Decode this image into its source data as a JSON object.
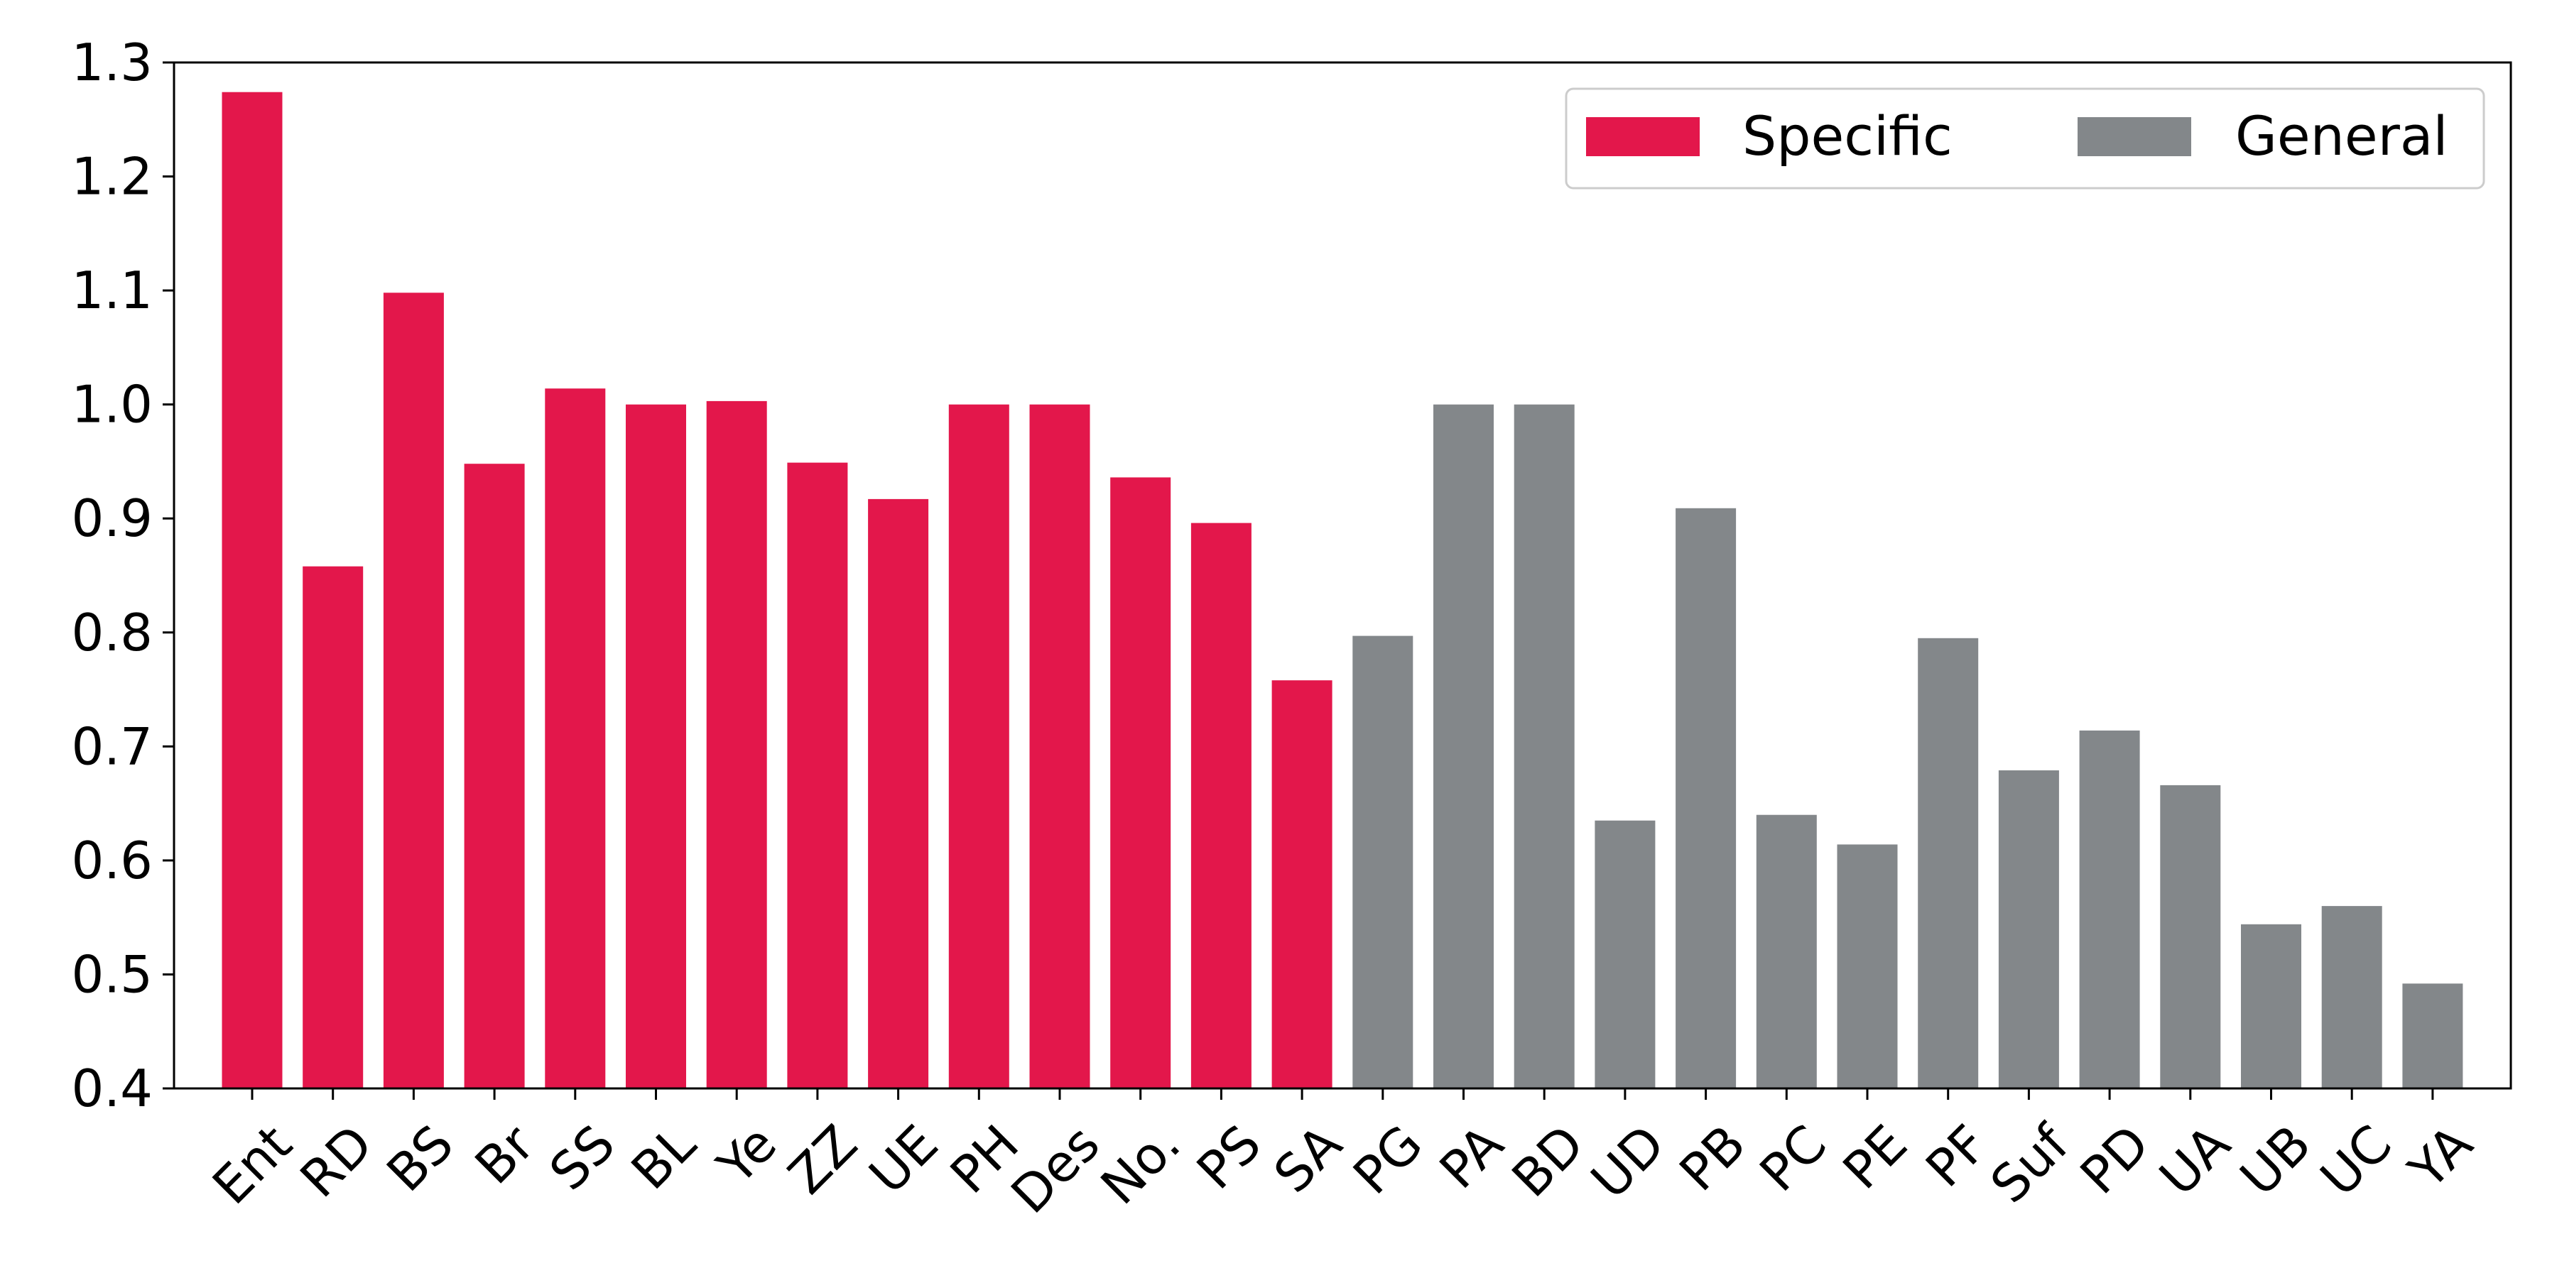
{
  "chart_data": {
    "type": "bar",
    "title": "",
    "xlabel": "",
    "ylabel": "",
    "ylim": [
      0.4,
      1.3
    ],
    "yticks": [
      "0.4",
      "0.5",
      "0.6",
      "0.7",
      "0.8",
      "0.9",
      "1.0",
      "1.1",
      "1.2",
      "1.3"
    ],
    "grid": false,
    "legend": {
      "placement": "top-right",
      "columns": 2
    },
    "categories": [
      "Ent",
      "RD",
      "BS",
      "Br",
      "SS",
      "BL",
      "Ye",
      "ZZ",
      "UE",
      "PH",
      "Des",
      "No.",
      "PS",
      "SA",
      "PG",
      "PA",
      "BD",
      "UD",
      "PB",
      "PC",
      "PE",
      "PF",
      "Suf",
      "PD",
      "UA",
      "UB",
      "UC",
      "YA"
    ],
    "series": [
      {
        "name": "Specific",
        "color": "#e3174b",
        "values": [
          1.274,
          0.858,
          1.098,
          0.948,
          1.014,
          1.0,
          1.003,
          0.949,
          0.917,
          1.0,
          1.0,
          0.936,
          0.896,
          0.758,
          null,
          null,
          null,
          null,
          null,
          null,
          null,
          null,
          null,
          null,
          null,
          null,
          null,
          null
        ]
      },
      {
        "name": "General",
        "color": "#83878a",
        "values": [
          null,
          null,
          null,
          null,
          null,
          null,
          null,
          null,
          null,
          null,
          null,
          null,
          null,
          null,
          0.797,
          1.0,
          1.0,
          0.635,
          0.909,
          0.64,
          0.614,
          0.795,
          0.679,
          0.714,
          0.666,
          0.544,
          0.56,
          0.492
        ]
      }
    ]
  }
}
